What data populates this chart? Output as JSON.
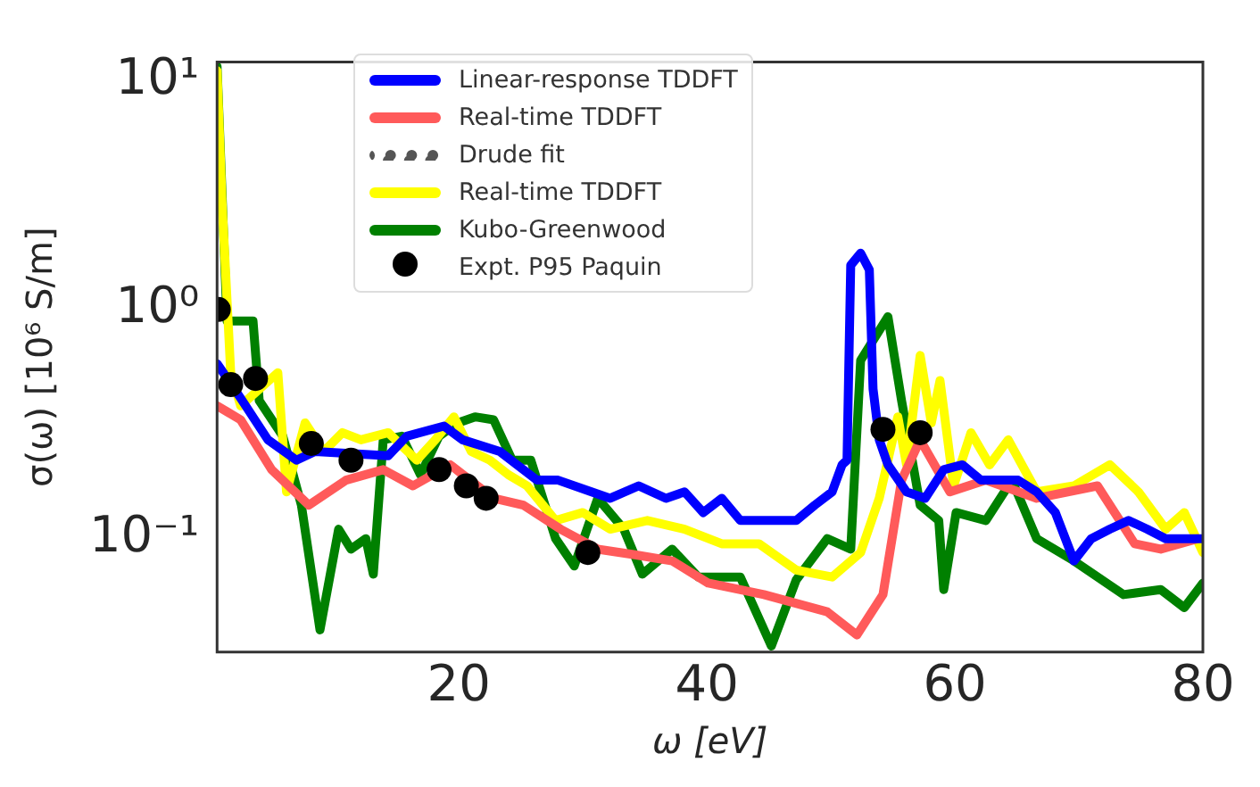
{
  "chart_data": {
    "type": "line",
    "xlabel": "ω [eV]",
    "ylabel": "σ(ω) [10⁶ S/m]",
    "xlim": [
      0.5,
      80
    ],
    "xticks": [
      20,
      40,
      60,
      80
    ],
    "ylim": [
      0.032,
      12
    ],
    "yticks": [
      {
        "value": 0.1,
        "label": "10⁻¹"
      },
      {
        "value": 1,
        "label": "10⁰"
      },
      {
        "value": 10,
        "label": "10¹"
      }
    ],
    "log": "y",
    "grid": false,
    "legend": "top",
    "series": [
      {
        "name": "Linear-response TDDFT",
        "color": "#0000ff",
        "x": [
          0.5,
          2.4,
          4.6,
          6.9,
          8.4,
          14.3,
          15.8,
          18.8,
          20.3,
          23.3,
          26.3,
          28,
          30.7,
          32.2,
          34.5,
          36.7,
          38.2,
          39.7,
          41.2,
          42.7,
          44.2,
          45.7,
          47.2,
          48.7,
          50.1,
          50.9,
          51.3,
          51.6,
          52.4,
          53.1,
          53.4,
          53.9,
          54.6,
          56.1,
          57.6,
          59.1,
          60.6,
          62.1,
          63.6,
          65.1,
          66.6,
          68.1,
          69.6,
          71,
          72.5,
          74,
          75.5,
          77,
          80
        ],
        "values": [
          0.58,
          0.41,
          0.27,
          0.22,
          0.24,
          0.23,
          0.28,
          0.31,
          0.27,
          0.24,
          0.18,
          0.18,
          0.16,
          0.15,
          0.17,
          0.15,
          0.16,
          0.13,
          0.15,
          0.12,
          0.12,
          0.12,
          0.12,
          0.14,
          0.16,
          0.21,
          0.22,
          1.56,
          1.76,
          1.49,
          0.45,
          0.27,
          0.21,
          0.16,
          0.15,
          0.2,
          0.21,
          0.18,
          0.18,
          0.18,
          0.16,
          0.13,
          0.08,
          0.1,
          0.11,
          0.12,
          0.11,
          0.1,
          0.1
        ]
      },
      {
        "name": "Real-time TDDFT",
        "color": "#ff5a5a",
        "x": [
          0.5,
          2.4,
          4.9,
          7.9,
          10.9,
          13.9,
          16.3,
          19.3,
          22.8,
          25.2,
          28.2,
          31.2,
          34.2,
          37.2,
          40.1,
          44.6,
          49.7,
          52.1,
          54.2,
          55.7,
          57.2,
          59.6,
          62.5,
          66.6,
          71.5,
          74.5,
          76.6,
          79.6
        ],
        "values": [
          0.38,
          0.33,
          0.2,
          0.14,
          0.18,
          0.2,
          0.17,
          0.21,
          0.15,
          0.14,
          0.11,
          0.09,
          0.085,
          0.08,
          0.064,
          0.057,
          0.048,
          0.038,
          0.057,
          0.18,
          0.27,
          0.16,
          0.18,
          0.15,
          0.17,
          0.095,
          0.09,
          0.1
        ]
      },
      {
        "name": "Drude fit",
        "color": "#555555",
        "line_style": "dotted"
      },
      {
        "name": "Real-time TDDFT",
        "color": "#ffff00",
        "x": [
          0.5,
          0.9,
          1.6,
          2.4,
          5.4,
          6.1,
          7.6,
          9.1,
          10.6,
          12.1,
          14.3,
          16.6,
          18.1,
          19.6,
          21,
          22.5,
          24,
          25.5,
          27.8,
          30,
          32.2,
          35.2,
          38.2,
          41.2,
          44.2,
          47.2,
          50.1,
          52.4,
          53.9,
          55.4,
          56.1,
          57.2,
          58.1,
          58.8,
          59.9,
          61.3,
          62.8,
          64.3,
          66.6,
          69.6,
          72.5,
          74.8,
          77,
          78.5,
          80
        ],
        "values": [
          11,
          2.95,
          0.53,
          0.38,
          0.53,
          0.16,
          0.32,
          0.24,
          0.29,
          0.27,
          0.29,
          0.22,
          0.27,
          0.34,
          0.24,
          0.22,
          0.19,
          0.17,
          0.12,
          0.13,
          0.11,
          0.12,
          0.11,
          0.095,
          0.095,
          0.073,
          0.068,
          0.087,
          0.15,
          0.34,
          0.21,
          0.63,
          0.32,
          0.49,
          0.17,
          0.29,
          0.21,
          0.27,
          0.16,
          0.17,
          0.21,
          0.16,
          0.11,
          0.13,
          0.087
        ]
      },
      {
        "name": "Kubo-Greenwood",
        "color": "#008000",
        "x": [
          0.5,
          1.3,
          3.4,
          3.9,
          5.8,
          7.3,
          8.8,
          10.3,
          11.3,
          12.5,
          13.1,
          13.9,
          15.4,
          16.9,
          18.4,
          19.9,
          21.3,
          22.8,
          24.3,
          25.8,
          27.8,
          29.3,
          31.2,
          33.3,
          34.8,
          37.2,
          39.3,
          42.7,
          45.2,
          47.2,
          49.7,
          51.6,
          52.4,
          54.6,
          55.7,
          57.2,
          58.7,
          59.1,
          60.1,
          62.5,
          64.6,
          66.6,
          69.6,
          73.6,
          76.6,
          78.5,
          80
        ],
        "values": [
          11.5,
          0.89,
          0.89,
          0.4,
          0.28,
          0.14,
          0.04,
          0.11,
          0.09,
          0.1,
          0.07,
          0.27,
          0.28,
          0.19,
          0.28,
          0.32,
          0.34,
          0.33,
          0.22,
          0.22,
          0.1,
          0.076,
          0.15,
          0.11,
          0.07,
          0.09,
          0.068,
          0.068,
          0.034,
          0.066,
          0.1,
          0.09,
          0.6,
          0.93,
          0.4,
          0.14,
          0.12,
          0.06,
          0.13,
          0.12,
          0.18,
          0.1,
          0.08,
          0.057,
          0.06,
          0.05,
          0.064
        ]
      },
      {
        "name": "Expt. P95 Paquin",
        "type": "scatter",
        "color": "#000000",
        "marker": "circle",
        "x": [
          0.6,
          1.6,
          3.6,
          8.1,
          11.3,
          18.4,
          20.6,
          22.2,
          30.4,
          54.2,
          57.2
        ],
        "values": [
          1.0,
          0.47,
          0.5,
          0.26,
          0.22,
          0.2,
          0.17,
          0.15,
          0.087,
          0.3,
          0.29
        ]
      }
    ]
  }
}
